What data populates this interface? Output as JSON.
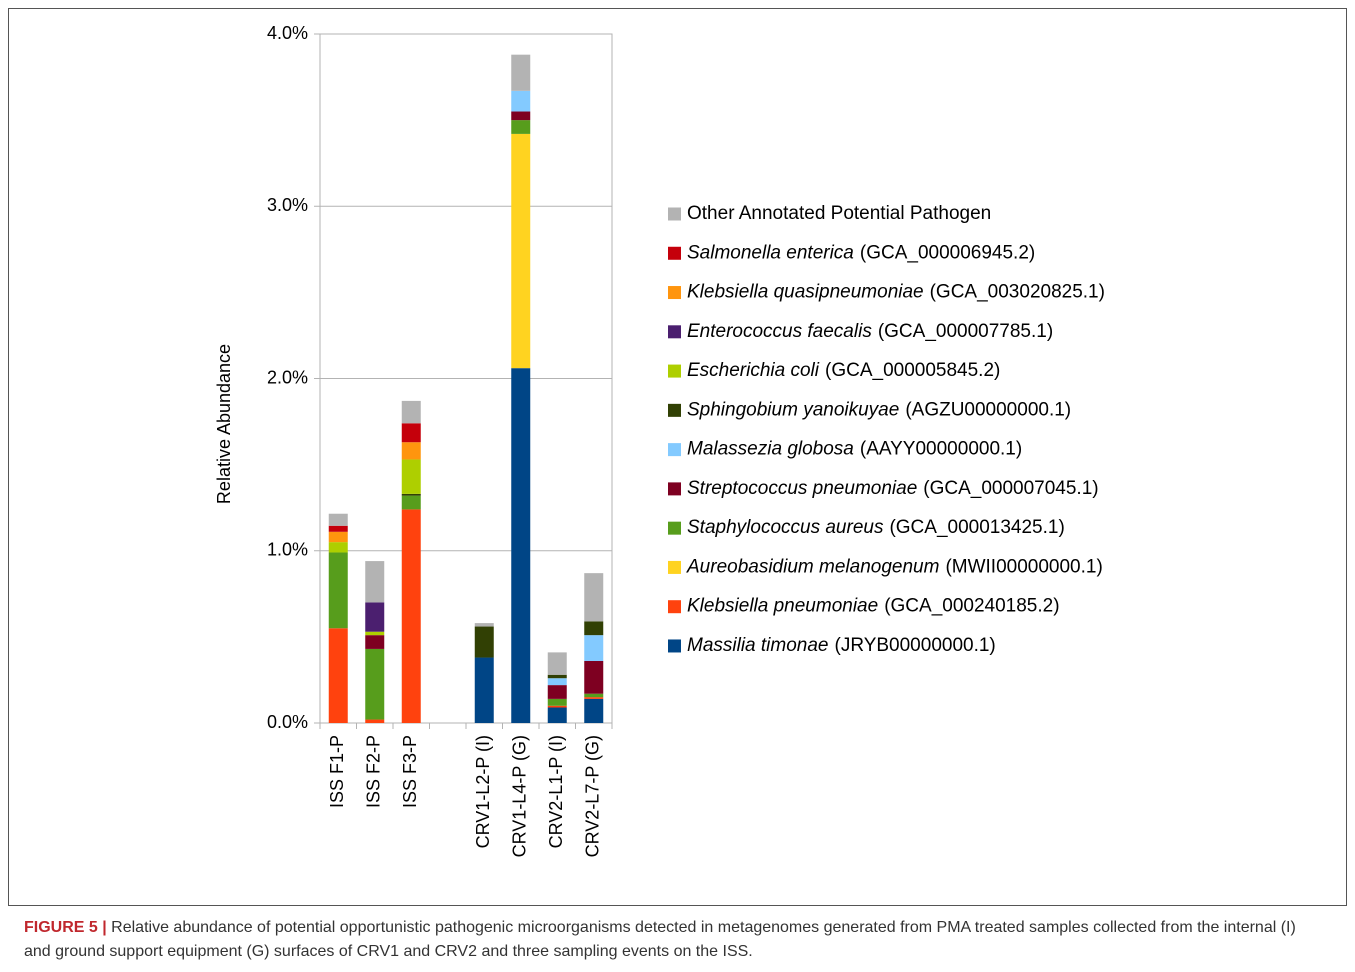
{
  "chart_data": {
    "type": "stacked_bar",
    "y_label": "Relative Abundance",
    "categories": [
      "ISS F1-P",
      "ISS F2-P",
      "ISS F3-P",
      null,
      "CRV1-L2-P (I)",
      "CRV1-L4-P (G)",
      "CRV2-L1-P (I)",
      "CRV2-L7-P (G)"
    ],
    "series": [
      {
        "name": "Massilia timonae",
        "accession": "(JRYB00000000.1)",
        "color": "#004586",
        "values": [
          0,
          0,
          0,
          null,
          0.38,
          2.06,
          0.09,
          0.14
        ]
      },
      {
        "name": "Klebsiella pneumoniae",
        "accession": "(GCA_000240185.2)",
        "color": "#ff420e",
        "values": [
          0.55,
          0.02,
          1.24,
          null,
          0,
          0,
          0.01,
          0.01
        ]
      },
      {
        "name": "Aureobasidium melanogenum",
        "accession": "(MWII00000000.1)",
        "color": "#ffd320",
        "values": [
          0,
          0,
          0,
          null,
          0,
          1.36,
          0,
          0
        ]
      },
      {
        "name": "Staphylococcus aureus",
        "accession": "(GCA_000013425.1)",
        "color": "#579d1c",
        "values": [
          0.44,
          0.41,
          0.08,
          null,
          0,
          0.08,
          0.04,
          0.02
        ]
      },
      {
        "name": "Streptococcus pneumoniae",
        "accession": "(GCA_000007045.1)",
        "color": "#7e0021",
        "values": [
          0,
          0.08,
          0,
          null,
          0,
          0.05,
          0.08,
          0.19
        ]
      },
      {
        "name": "Malassezia globosa",
        "accession": "(AAYY00000000.1)",
        "color": "#83caff",
        "values": [
          0,
          0,
          0,
          null,
          0,
          0.12,
          0.04,
          0.15
        ]
      },
      {
        "name": "Sphingobium yanoikuyae",
        "accession": "(AGZU00000000.1)",
        "color": "#314004",
        "values": [
          0,
          0,
          0.01,
          null,
          0.18,
          0,
          0.02,
          0.08
        ]
      },
      {
        "name": "Escherichia coli",
        "accession": "(GCA_000005845.2)",
        "color": "#aecf00",
        "values": [
          0.06,
          0.02,
          0.2,
          null,
          0,
          0,
          0,
          0
        ]
      },
      {
        "name": "Enterococcus faecalis",
        "accession": "(GCA_000007785.1)",
        "color": "#4b1f6f",
        "values": [
          0,
          0.17,
          0,
          null,
          0,
          0,
          0,
          0
        ]
      },
      {
        "name": "Klebsiella quasipneumoniae",
        "accession": "(GCA_003020825.1)",
        "color": "#ff950e",
        "values": [
          0.06,
          0,
          0.1,
          null,
          0,
          0,
          0,
          0
        ]
      },
      {
        "name": "Salmonella enterica",
        "accession": "(GCA_000006945.2)",
        "color": "#c5000b",
        "values": [
          0.035,
          0,
          0.11,
          null,
          0,
          0,
          0,
          0
        ]
      },
      {
        "name": "Other Annotated Potential Pathogen",
        "color": "#b3b3b3",
        "values": [
          0.07,
          0.24,
          0.13,
          null,
          0.02,
          0.21,
          0.13,
          0.28
        ]
      }
    ],
    "ylim": [
      0,
      4
    ],
    "yticks": [
      {
        "value": 0,
        "label": "0.0%"
      },
      {
        "value": 1,
        "label": "1.0%"
      },
      {
        "value": 2,
        "label": "2.0%"
      },
      {
        "value": 3,
        "label": "3.0%"
      },
      {
        "value": 4,
        "label": "4.0%"
      }
    ],
    "grid": true
  },
  "caption": {
    "label": "FIGURE 5 |",
    "text": "Relative abundance of potential opportunistic pathogenic microorganisms detected in metagenomes generated from PMA treated samples collected from the internal (I) and ground support equipment (G) surfaces of CRV1 and CRV2 and three sampling events on the ISS."
  }
}
